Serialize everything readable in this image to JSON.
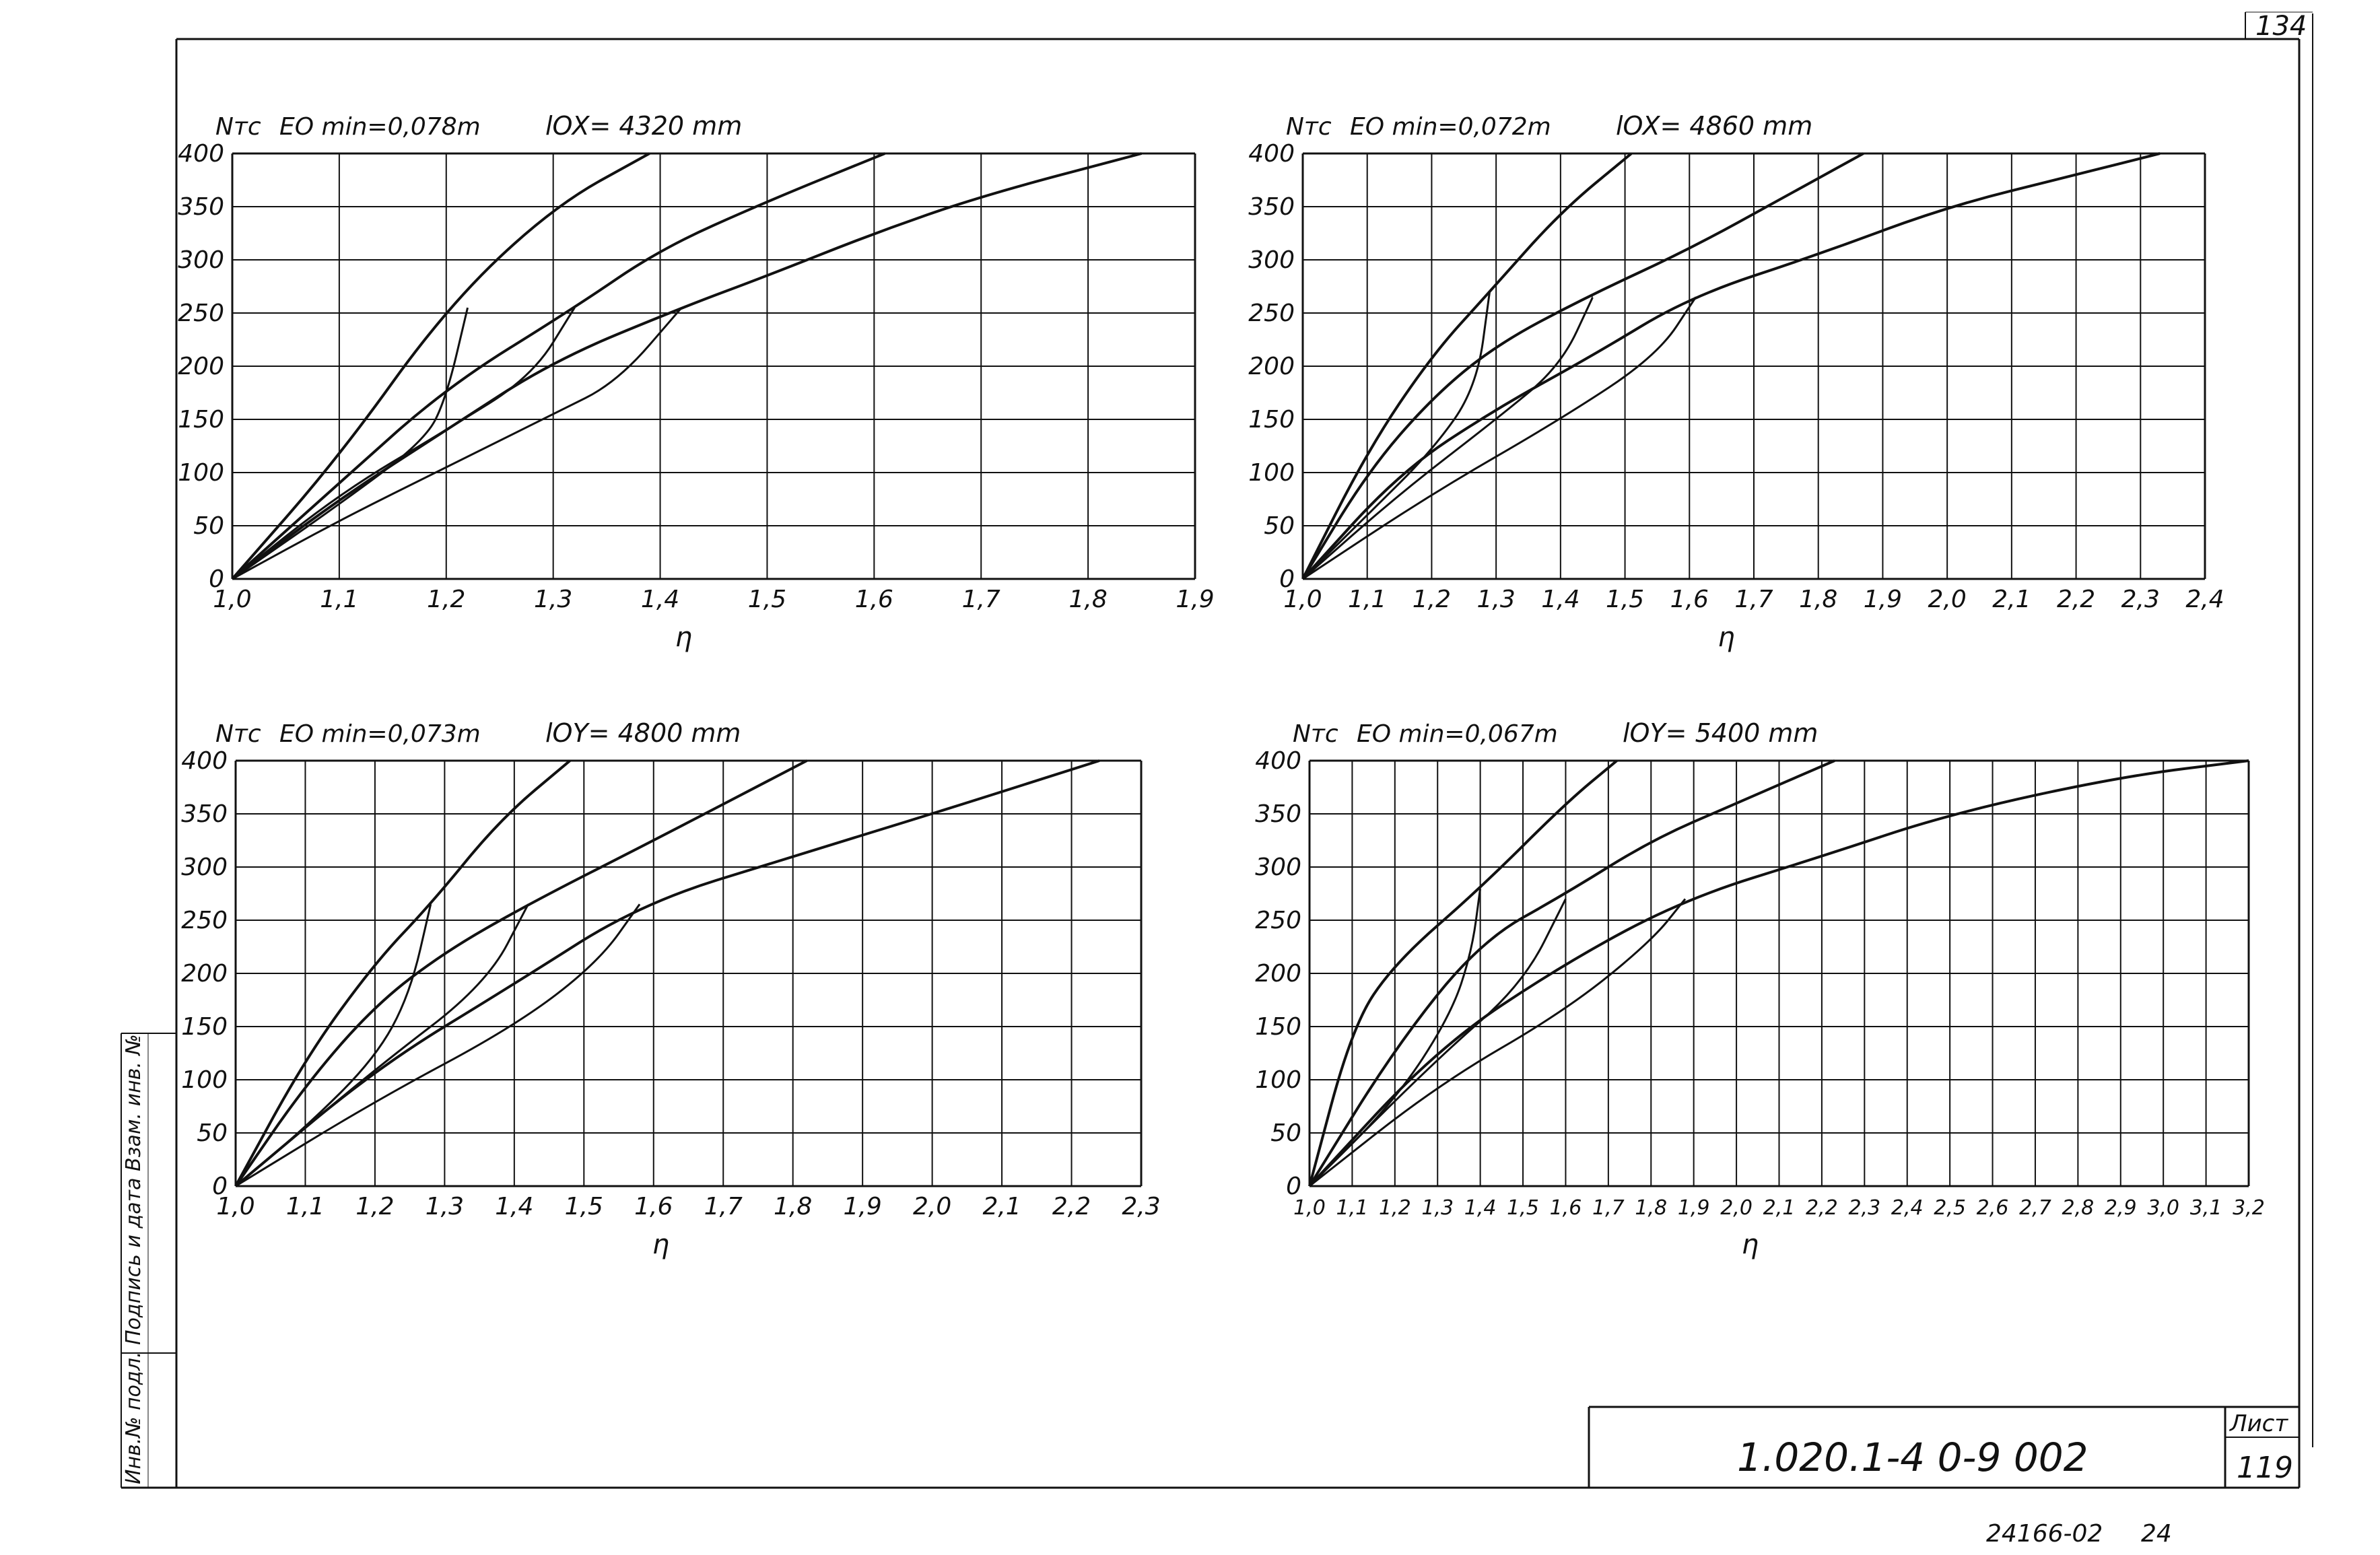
{
  "sheet": {
    "page_number": "134",
    "document_code": "1.020.1-4  0-9  002",
    "sheet_label": "Лист",
    "sheet_number": "119",
    "archive_number": "24166-02",
    "archive_suffix": "24",
    "side_stamp": "Инв.№ подл.   Подпись и дата   Взам. инв. №"
  },
  "chart_data": [
    {
      "type": "line",
      "y_label": "Nтс",
      "eo_text": "EO min=0,078m",
      "l_text": "lOX= 4320 mm",
      "x_axis_label": "η",
      "x_ticks": [
        "1,0",
        "1,1",
        "1,2",
        "1,3",
        "1,4",
        "1,5",
        "1,6",
        "1,7",
        "1,8",
        "1,9"
      ],
      "y_ticks": [
        "0",
        "50",
        "100",
        "150",
        "200",
        "250",
        "300",
        "350",
        "400"
      ],
      "xlim": [
        1.0,
        1.9
      ],
      "ylim": [
        0,
        400
      ],
      "grid": true,
      "series": [
        {
          "values": [
            [
              1.0,
              0
            ],
            [
              1.1,
              115
            ],
            [
              1.2,
              255
            ],
            [
              1.3,
              350
            ],
            [
              1.39,
              400
            ]
          ]
        },
        {
          "values": [
            [
              1.0,
              0
            ],
            [
              1.1,
              90
            ],
            [
              1.2,
              180
            ],
            [
              1.32,
              255
            ],
            [
              1.4,
              310
            ],
            [
              1.5,
              355
            ],
            [
              1.61,
              400
            ]
          ]
        },
        {
          "values": [
            [
              1.0,
              0
            ],
            [
              1.1,
              75
            ],
            [
              1.2,
              140
            ],
            [
              1.3,
              205
            ],
            [
              1.42,
              255
            ],
            [
              1.5,
              285
            ],
            [
              1.6,
              325
            ],
            [
              1.7,
              360
            ],
            [
              1.85,
              400
            ]
          ]
        },
        {
          "values": [
            [
              1.0,
              0
            ],
            [
              1.1,
              55
            ],
            [
              1.2,
              105
            ],
            [
              1.3,
              155
            ],
            [
              1.36,
              185
            ],
            [
              1.42,
              255
            ]
          ]
        },
        {
          "values": [
            [
              1.0,
              0
            ],
            [
              1.1,
              70
            ],
            [
              1.18,
              130
            ],
            [
              1.2,
              170
            ],
            [
              1.22,
              255
            ]
          ]
        },
        {
          "values": [
            [
              1.0,
              0
            ],
            [
              1.1,
              80
            ],
            [
              1.2,
              140
            ],
            [
              1.28,
              190
            ],
            [
              1.32,
              255
            ]
          ]
        }
      ]
    },
    {
      "type": "line",
      "y_label": "Nтс",
      "eo_text": "EO min=0,072m",
      "l_text": "lOX= 4860 mm",
      "x_axis_label": "η",
      "x_ticks": [
        "1,0",
        "1,1",
        "1,2",
        "1,3",
        "1,4",
        "1,5",
        "1,6",
        "1,7",
        "1,8",
        "1,9",
        "2,0",
        "2,1",
        "2,2",
        "2,3",
        "2,4"
      ],
      "y_ticks": [
        "0",
        "50",
        "100",
        "150",
        "200",
        "250",
        "300",
        "350",
        "400"
      ],
      "xlim": [
        1.0,
        2.4
      ],
      "ylim": [
        0,
        400
      ],
      "grid": true,
      "series": [
        {
          "values": [
            [
              1.0,
              0
            ],
            [
              1.1,
              120
            ],
            [
              1.2,
              210
            ],
            [
              1.29,
              270
            ],
            [
              1.4,
              345
            ],
            [
              1.51,
              400
            ]
          ]
        },
        {
          "values": [
            [
              1.0,
              0
            ],
            [
              1.1,
              100
            ],
            [
              1.2,
              170
            ],
            [
              1.3,
              220
            ],
            [
              1.44,
              265
            ],
            [
              1.6,
              310
            ],
            [
              1.75,
              360
            ],
            [
              1.87,
              400
            ]
          ]
        },
        {
          "values": [
            [
              1.0,
              0
            ],
            [
              1.15,
              100
            ],
            [
              1.3,
              160
            ],
            [
              1.45,
              210
            ],
            [
              1.6,
              265
            ],
            [
              1.8,
              305
            ],
            [
              2.0,
              350
            ],
            [
              2.2,
              380
            ],
            [
              2.33,
              400
            ]
          ]
        },
        {
          "values": [
            [
              1.0,
              0
            ],
            [
              1.2,
              80
            ],
            [
              1.4,
              150
            ],
            [
              1.55,
              210
            ],
            [
              1.61,
              265
            ]
          ]
        },
        {
          "values": [
            [
              1.0,
              0
            ],
            [
              1.1,
              60
            ],
            [
              1.2,
              120
            ],
            [
              1.27,
              180
            ],
            [
              1.29,
              270
            ]
          ]
        },
        {
          "values": [
            [
              1.0,
              0
            ],
            [
              1.15,
              80
            ],
            [
              1.3,
              150
            ],
            [
              1.4,
              200
            ],
            [
              1.45,
              265
            ]
          ]
        }
      ]
    },
    {
      "type": "line",
      "y_label": "Nтс",
      "eo_text": "EO min=0,073m",
      "l_text": "lOY= 4800 mm",
      "x_axis_label": "η",
      "x_ticks": [
        "1,0",
        "1,1",
        "1,2",
        "1,3",
        "1,4",
        "1,5",
        "1,6",
        "1,7",
        "1,8",
        "1,9",
        "2,0",
        "2,1",
        "2,2",
        "2,3"
      ],
      "y_ticks": [
        "0",
        "50",
        "100",
        "150",
        "200",
        "250",
        "300",
        "350",
        "400"
      ],
      "xlim": [
        1.0,
        2.3
      ],
      "ylim": [
        0,
        400
      ],
      "grid": true,
      "series": [
        {
          "values": [
            [
              1.0,
              0
            ],
            [
              1.1,
              120
            ],
            [
              1.2,
              210
            ],
            [
              1.28,
              265
            ],
            [
              1.38,
              345
            ],
            [
              1.48,
              400
            ]
          ]
        },
        {
          "values": [
            [
              1.0,
              0
            ],
            [
              1.1,
              95
            ],
            [
              1.2,
              170
            ],
            [
              1.3,
              220
            ],
            [
              1.42,
              265
            ],
            [
              1.6,
              325
            ],
            [
              1.82,
              400
            ]
          ]
        },
        {
          "values": [
            [
              1.0,
              0
            ],
            [
              1.2,
              110
            ],
            [
              1.4,
              190
            ],
            [
              1.58,
              265
            ],
            [
              1.8,
              310
            ],
            [
              2.0,
              350
            ],
            [
              2.24,
              400
            ]
          ]
        },
        {
          "values": [
            [
              1.0,
              0
            ],
            [
              1.2,
              80
            ],
            [
              1.4,
              150
            ],
            [
              1.52,
              210
            ],
            [
              1.58,
              265
            ]
          ]
        },
        {
          "values": [
            [
              1.0,
              0
            ],
            [
              1.1,
              55
            ],
            [
              1.2,
              120
            ],
            [
              1.25,
              180
            ],
            [
              1.28,
              265
            ]
          ]
        },
        {
          "values": [
            [
              1.0,
              0
            ],
            [
              1.2,
              110
            ],
            [
              1.36,
              190
            ],
            [
              1.42,
              265
            ]
          ]
        }
      ]
    },
    {
      "type": "line",
      "y_label": "Nтс",
      "eo_text": "EO min=0,067m",
      "l_text": "lOY= 5400 mm",
      "x_axis_label": "η",
      "x_ticks": [
        "1,0",
        "1,1",
        "1,2",
        "1,3",
        "1,4",
        "1,5",
        "1,6",
        "1,7",
        "1,8",
        "1,9",
        "2,0",
        "2,1",
        "2,2",
        "2,3",
        "2,4",
        "2,5",
        "2,6",
        "2,7",
        "2,8",
        "2,9",
        "3,0",
        "3,1",
        "3,2"
      ],
      "y_ticks": [
        "0",
        "50",
        "100",
        "150",
        "200",
        "250",
        "300",
        "350",
        "400"
      ],
      "xlim": [
        1.0,
        3.2
      ],
      "ylim": [
        0,
        400
      ],
      "grid": true,
      "series": [
        {
          "values": [
            [
              1.0,
              0
            ],
            [
              1.1,
              150
            ],
            [
              1.2,
              210
            ],
            [
              1.4,
              280
            ],
            [
              1.6,
              360
            ],
            [
              1.72,
              400
            ]
          ]
        },
        {
          "values": [
            [
              1.0,
              0
            ],
            [
              1.2,
              130
            ],
            [
              1.4,
              230
            ],
            [
              1.6,
              275
            ],
            [
              1.8,
              325
            ],
            [
              2.0,
              360
            ],
            [
              2.23,
              400
            ]
          ]
        },
        {
          "values": [
            [
              1.0,
              0
            ],
            [
              1.3,
              130
            ],
            [
              1.6,
              210
            ],
            [
              1.88,
              270
            ],
            [
              2.2,
              310
            ],
            [
              2.5,
              350
            ],
            [
              2.9,
              385
            ],
            [
              3.2,
              400
            ]
          ]
        },
        {
          "values": [
            [
              1.0,
              0
            ],
            [
              1.3,
              95
            ],
            [
              1.6,
              165
            ],
            [
              1.8,
              230
            ],
            [
              1.88,
              270
            ]
          ]
        },
        {
          "values": [
            [
              1.0,
              0
            ],
            [
              1.2,
              80
            ],
            [
              1.33,
              160
            ],
            [
              1.38,
              220
            ],
            [
              1.4,
              280
            ]
          ]
        },
        {
          "values": [
            [
              1.0,
              0
            ],
            [
              1.3,
              120
            ],
            [
              1.5,
              190
            ],
            [
              1.6,
              270
            ]
          ]
        }
      ]
    }
  ]
}
